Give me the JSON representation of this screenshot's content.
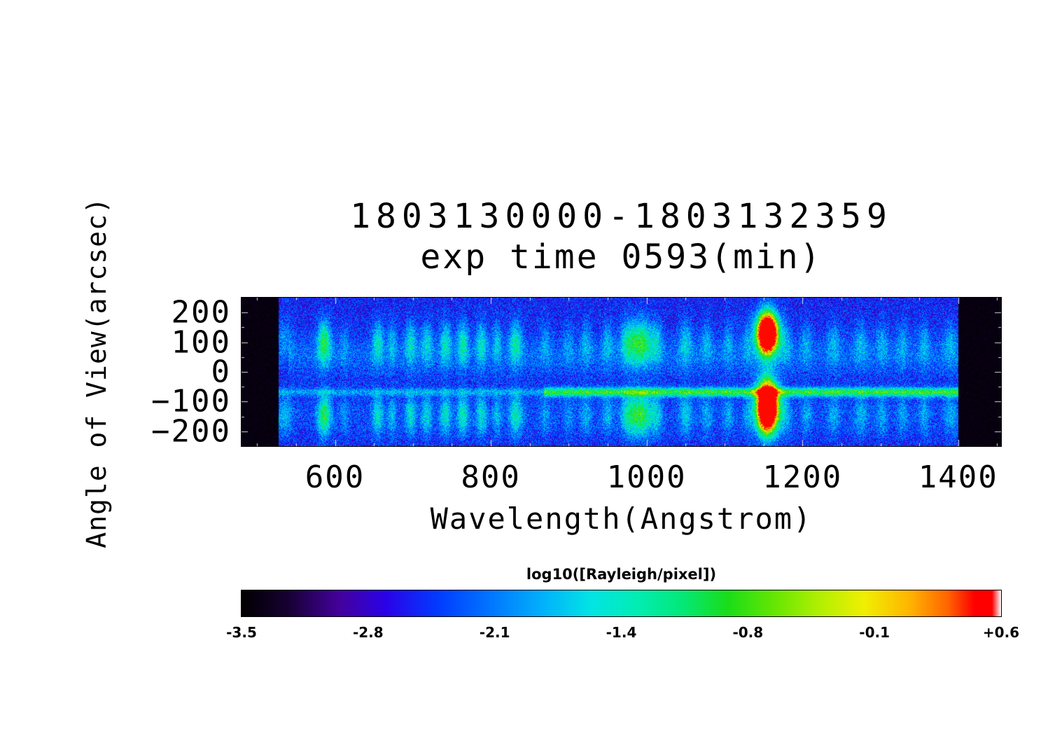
{
  "chart_data": {
    "type": "heatmap",
    "title": "1803130000-1803132359",
    "subtitle": "exp time 0593(min)",
    "xlabel": "Wavelength(Angstrom)",
    "ylabel": "Angle of View(arcsec)",
    "x_ticks": [
      "600",
      "800",
      "1000",
      "1200",
      "1400"
    ],
    "x_tick_values": [
      600,
      800,
      1000,
      1200,
      1400
    ],
    "y_ticks": [
      "200",
      "100",
      "0",
      "−100",
      "−200"
    ],
    "y_tick_values": [
      200,
      100,
      0,
      -100,
      -200
    ],
    "xlim": [
      480,
      1455
    ],
    "ylim": [
      -250,
      250
    ],
    "grid": false,
    "valid_x_range": [
      528,
      1400
    ],
    "background_level": -2.55,
    "noise_amplitude": 0.45,
    "profile_blobs": [
      {
        "y": 100,
        "sigma": 52
      },
      {
        "y": -145,
        "sigma": 48
      }
    ],
    "horizontal_bands": [
      {
        "y": -68,
        "sigma": 10,
        "amplitude": 1.6,
        "x_start": 868,
        "x_end": 1400
      },
      {
        "y": -68,
        "sigma": 9,
        "amplitude": 0.55,
        "x_start": 528,
        "x_end": 868
      },
      {
        "y": 55,
        "sigma": 48,
        "amplitude": 0.32,
        "x_start": 540,
        "x_end": 1400
      },
      {
        "y": -150,
        "sigma": 55,
        "amplitude": 0.18,
        "x_start": 528,
        "x_end": 1400
      }
    ],
    "emission_lines": [
      {
        "wavelength": 535,
        "amplitude": 0.55,
        "sigma": 7
      },
      {
        "wavelength": 586,
        "amplitude": 1.4,
        "sigma": 6
      },
      {
        "wavelength": 612,
        "amplitude": 0.35,
        "sigma": 4
      },
      {
        "wavelength": 655,
        "amplitude": 0.85,
        "sigma": 5
      },
      {
        "wavelength": 673,
        "amplitude": 0.6,
        "sigma": 4
      },
      {
        "wavelength": 697,
        "amplitude": 0.85,
        "sigma": 5
      },
      {
        "wavelength": 718,
        "amplitude": 0.75,
        "sigma": 5
      },
      {
        "wavelength": 742,
        "amplitude": 0.9,
        "sigma": 5
      },
      {
        "wavelength": 764,
        "amplitude": 1.0,
        "sigma": 5
      },
      {
        "wavelength": 788,
        "amplitude": 0.85,
        "sigma": 5
      },
      {
        "wavelength": 808,
        "amplitude": 0.6,
        "sigma": 4
      },
      {
        "wavelength": 832,
        "amplitude": 1.0,
        "sigma": 6
      },
      {
        "wavelength": 870,
        "amplitude": 0.4,
        "sigma": 5
      },
      {
        "wavelength": 900,
        "amplitude": 0.35,
        "sigma": 5
      },
      {
        "wavelength": 922,
        "amplitude": 0.5,
        "sigma": 5
      },
      {
        "wavelength": 950,
        "amplitude": 0.55,
        "sigma": 5
      },
      {
        "wavelength": 975,
        "amplitude": 0.7,
        "sigma": 6
      },
      {
        "wavelength": 992,
        "amplitude": 1.5,
        "sigma": 11
      },
      {
        "wavelength": 1013,
        "amplitude": 0.6,
        "sigma": 5
      },
      {
        "wavelength": 1050,
        "amplitude": 0.7,
        "sigma": 6
      },
      {
        "wavelength": 1077,
        "amplitude": 0.5,
        "sigma": 5
      },
      {
        "wavelength": 1105,
        "amplitude": 0.45,
        "sigma": 5
      },
      {
        "wavelength": 1130,
        "amplitude": 0.4,
        "sigma": 5
      },
      {
        "wavelength": 1178,
        "amplitude": 0.5,
        "sigma": 6
      },
      {
        "wavelength": 1205,
        "amplitude": 0.45,
        "sigma": 5
      },
      {
        "wavelength": 1240,
        "amplitude": 0.5,
        "sigma": 6
      },
      {
        "wavelength": 1275,
        "amplitude": 0.55,
        "sigma": 6
      },
      {
        "wavelength": 1302,
        "amplitude": 0.5,
        "sigma": 5
      },
      {
        "wavelength": 1328,
        "amplitude": 0.45,
        "sigma": 5
      },
      {
        "wavelength": 1356,
        "amplitude": 0.5,
        "sigma": 5
      },
      {
        "wavelength": 1390,
        "amplitude": 0.5,
        "sigma": 6
      }
    ],
    "bright_feature": {
      "wavelength": 1155,
      "sigma": 9,
      "blobs": [
        {
          "y": 130,
          "sigma": 46,
          "amplitude": 6.0
        },
        {
          "y": -118,
          "sigma": 56,
          "amplitude": 6.5
        }
      ]
    },
    "colorbar": {
      "label": "log10([Rayleigh/pixel])",
      "ticks": [
        "-3.5",
        "-2.8",
        "-2.1",
        "-1.4",
        "-0.8",
        "-0.1",
        "+0.6"
      ],
      "min": -3.5,
      "max": 0.6,
      "stops": [
        {
          "pos": 0.0,
          "color": "#000000"
        },
        {
          "pos": 0.06,
          "color": "#160131"
        },
        {
          "pos": 0.13,
          "color": "#44019d"
        },
        {
          "pos": 0.19,
          "color": "#2a02e8"
        },
        {
          "pos": 0.26,
          "color": "#013cff"
        },
        {
          "pos": 0.33,
          "color": "#0178ff"
        },
        {
          "pos": 0.4,
          "color": "#01b4fa"
        },
        {
          "pos": 0.46,
          "color": "#02e4e4"
        },
        {
          "pos": 0.52,
          "color": "#02edb4"
        },
        {
          "pos": 0.58,
          "color": "#03e878"
        },
        {
          "pos": 0.64,
          "color": "#19dd19"
        },
        {
          "pos": 0.7,
          "color": "#64e602"
        },
        {
          "pos": 0.76,
          "color": "#b0ef02"
        },
        {
          "pos": 0.82,
          "color": "#f0ef02"
        },
        {
          "pos": 0.88,
          "color": "#ffb401"
        },
        {
          "pos": 0.93,
          "color": "#ff6401"
        },
        {
          "pos": 0.965,
          "color": "#fe0000"
        },
        {
          "pos": 0.988,
          "color": "#fe0000"
        },
        {
          "pos": 1.0,
          "color": "#ffffff"
        }
      ]
    }
  }
}
